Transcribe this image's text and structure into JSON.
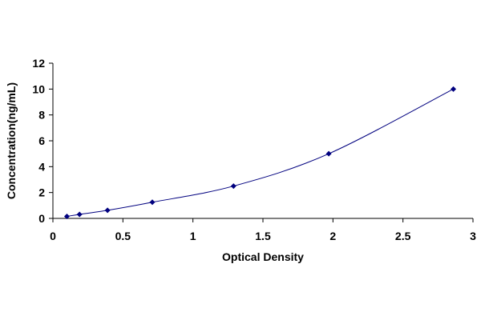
{
  "chart_data": {
    "type": "scatter",
    "title": "",
    "xlabel": "Optical Density",
    "ylabel": "Concentration(ng/mL)",
    "xlim": [
      0,
      3
    ],
    "ylim": [
      0,
      12
    ],
    "xticks": [
      0,
      0.5,
      1,
      1.5,
      2,
      2.5,
      3
    ],
    "xtick_labels": [
      "0",
      "0.5",
      "1",
      "1.5",
      "2",
      "2.5",
      "3"
    ],
    "yticks": [
      0,
      2,
      4,
      6,
      8,
      10,
      12
    ],
    "ytick_labels": [
      "0",
      "2",
      "4",
      "6",
      "8",
      "10",
      "12"
    ],
    "grid": false,
    "legend": "none",
    "series": [
      {
        "x": [
          0.1,
          0.19,
          0.39,
          0.71,
          1.29,
          1.97,
          2.86
        ],
        "y": [
          0.156,
          0.312,
          0.625,
          1.25,
          2.5,
          5,
          10
        ],
        "marker": "diamond",
        "fit": "smooth-curve",
        "color": "#00007f"
      }
    ]
  }
}
